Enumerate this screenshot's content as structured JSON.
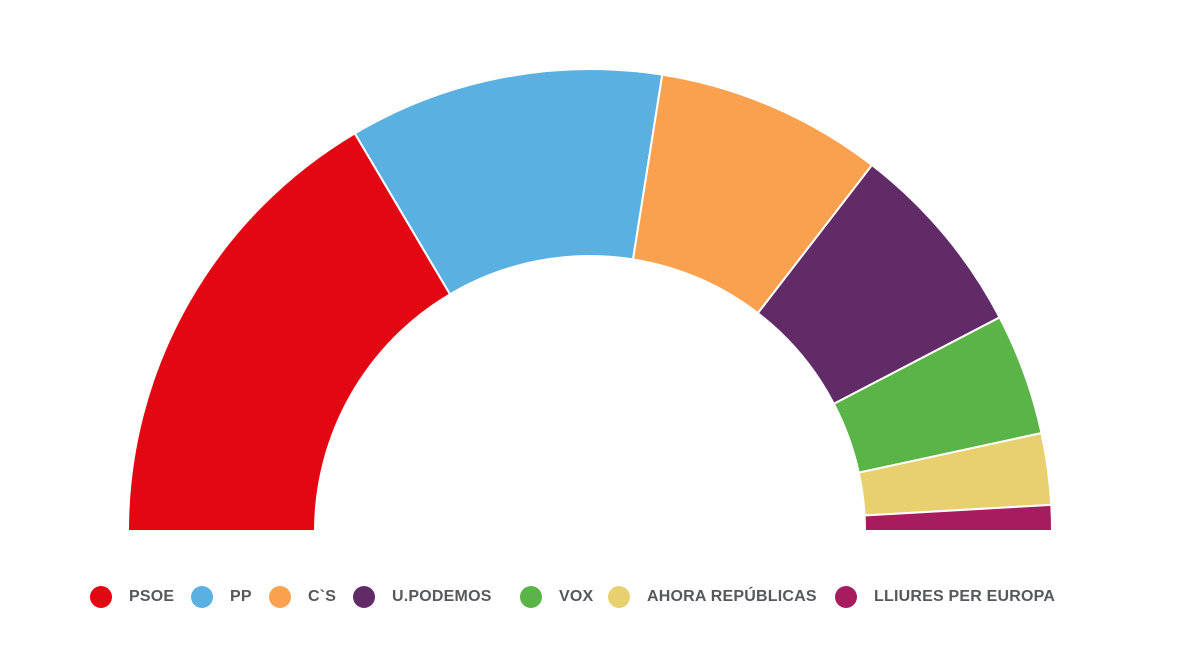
{
  "chart_data": {
    "type": "pie",
    "subtype": "half-donut",
    "title": "",
    "categories": [
      "PSOE",
      "PP",
      "C`S",
      "U.PODEMOS",
      "VOX",
      "AHORA REPÚBLICAS",
      "LLIURES PER EUROPA"
    ],
    "values": [
      33.0,
      22.0,
      15.9,
      13.8,
      8.5,
      5.0,
      1.8
    ],
    "unit": "percent of semicircle (estimated from arc angles; no numeric labels shown)",
    "colors": [
      "#e20713",
      "#5bb0e2",
      "#faa14f",
      "#602b67",
      "#5ab447",
      "#e9d06f",
      "#a61c5f"
    ],
    "start_angle_deg": 180,
    "end_angle_deg": 0,
    "inner_radius_ratio": 0.595,
    "slice_border_color": "#ffffff",
    "background_color": "#ffffff",
    "legend_position": "bottom-left",
    "legend_text_color": "#57585a"
  }
}
